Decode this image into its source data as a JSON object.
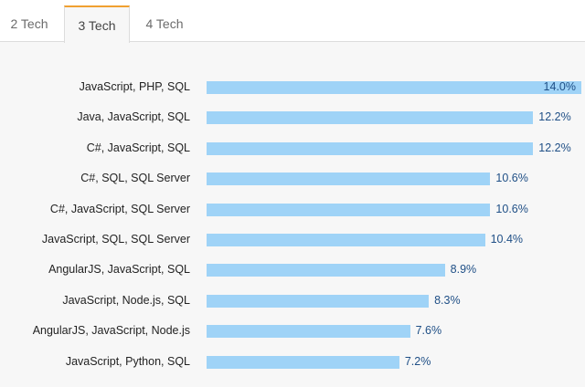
{
  "tabs": [
    {
      "label": "2 Tech"
    },
    {
      "label": "3 Tech"
    },
    {
      "label": "4 Tech"
    }
  ],
  "active_tab": "3 Tech",
  "colors": {
    "bar": "#9fd3f7",
    "value_text": "#1f4f86",
    "active_tab_accent": "#f0a030"
  },
  "chart_data": {
    "type": "bar",
    "orientation": "horizontal",
    "title": "",
    "xlabel": "",
    "ylabel": "",
    "xlim": [
      0,
      14.0
    ],
    "grid": false,
    "categories": [
      "JavaScript, PHP, SQL",
      "Java, JavaScript, SQL",
      "C#, JavaScript, SQL",
      "C#, SQL, SQL Server",
      "C#, JavaScript, SQL Server",
      "JavaScript, SQL, SQL Server",
      "AngularJS, JavaScript, SQL",
      "JavaScript, Node.js, SQL",
      "AngularJS, JavaScript, Node.js",
      "JavaScript, Python, SQL"
    ],
    "values": [
      14.0,
      12.2,
      12.2,
      10.6,
      10.6,
      10.4,
      8.9,
      8.3,
      7.6,
      7.2
    ],
    "value_labels": [
      "14.0%",
      "12.2%",
      "12.2%",
      "10.6%",
      "10.6%",
      "10.4%",
      "8.9%",
      "8.3%",
      "7.6%",
      "7.2%"
    ]
  }
}
